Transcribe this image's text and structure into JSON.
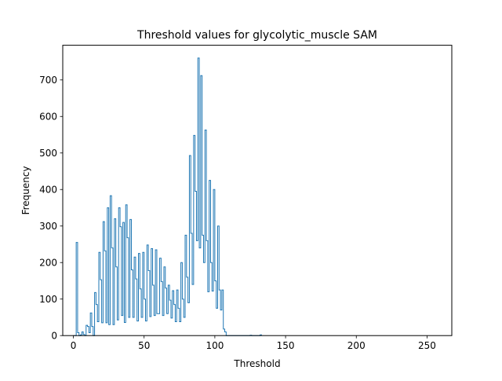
{
  "chart_data": {
    "type": "histogram",
    "title": "Threshold values for glycolytic_muscle SAM",
    "xlabel": "Threshold",
    "ylabel": "Frequency",
    "xlim": [
      -7.5,
      267.5
    ],
    "ylim": [
      0,
      795
    ],
    "xticks": [
      0,
      50,
      100,
      150,
      200,
      250
    ],
    "yticks": [
      0,
      100,
      200,
      300,
      400,
      500,
      600,
      700
    ],
    "grid": false,
    "histtype": "step",
    "line_color": "#1f77b4",
    "bin_start": 0,
    "bin_width": 1,
    "counts": [
      0,
      0,
      255,
      8,
      0,
      2,
      10,
      3,
      0,
      28,
      25,
      8,
      62,
      25,
      0,
      118,
      85,
      38,
      228,
      153,
      35,
      312,
      232,
      35,
      350,
      30,
      383,
      240,
      30,
      320,
      188,
      43,
      350,
      298,
      55,
      310,
      36,
      358,
      268,
      50,
      318,
      180,
      50,
      215,
      155,
      40,
      225,
      128,
      50,
      228,
      100,
      40,
      248,
      178,
      52,
      238,
      138,
      55,
      235,
      60,
      60,
      212,
      148,
      55,
      188,
      130,
      60,
      138,
      97,
      48,
      123,
      85,
      38,
      125,
      75,
      38,
      200,
      100,
      50,
      275,
      160,
      90,
      493,
      280,
      140,
      548,
      395,
      260,
      760,
      240,
      712,
      275,
      200,
      563,
      260,
      120,
      425,
      200,
      122,
      400,
      150,
      75,
      300,
      125,
      70,
      125,
      18,
      10,
      0,
      0,
      0,
      0,
      0,
      0,
      0,
      0,
      0,
      0,
      0,
      0,
      0,
      0,
      0,
      0,
      0,
      1,
      0,
      0,
      0,
      0,
      0,
      0,
      2
    ]
  }
}
